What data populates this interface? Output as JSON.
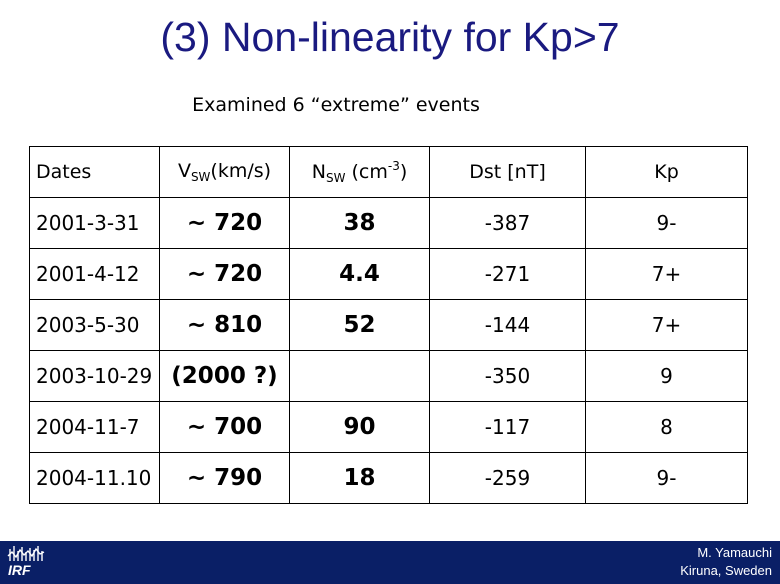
{
  "title": "(3) Non-linearity for Kp>7",
  "subtitle": "Examined 6 “extreme” events",
  "table": {
    "headers": {
      "dates": "Dates",
      "vsw_main": "V",
      "vsw_sub": "SW",
      "vsw_unit": "(km/s)",
      "nsw_main": "N",
      "nsw_sub": "SW",
      "nsw_unit_pre": " (cm",
      "nsw_sup": "-3",
      "nsw_unit_post": ")",
      "dst": "Dst [nT]",
      "kp": "Kp"
    },
    "rows": [
      {
        "date": "2001-3-31",
        "vsw": "~ 720",
        "nsw": "38",
        "dst": "-387",
        "kp": "9-"
      },
      {
        "date": "2001-4-12",
        "vsw": "~ 720",
        "nsw": "4.4",
        "dst": "-271",
        "kp": "7+"
      },
      {
        "date": "2003-5-30",
        "vsw": "~ 810",
        "nsw": "52",
        "dst": "-144",
        "kp": "7+"
      },
      {
        "date": "2003-10-29",
        "vsw": "(2000 ?)",
        "nsw": "",
        "dst": "-350",
        "kp": "9"
      },
      {
        "date": "2004-11-7",
        "vsw": "~ 700",
        "nsw": "90",
        "dst": "-117",
        "kp": "8"
      },
      {
        "date": "2004-11.10",
        "vsw": "~ 790",
        "nsw": "18",
        "dst": "-259",
        "kp": "9-"
      }
    ]
  },
  "footer": {
    "logo_text": "IRF",
    "logo_icon": "irf-logo-icon",
    "author": "M. Yamauchi",
    "location": "Kiruna, Sweden",
    "bar_color": "#0a1f66"
  },
  "colors": {
    "title": "#1a1a80"
  }
}
